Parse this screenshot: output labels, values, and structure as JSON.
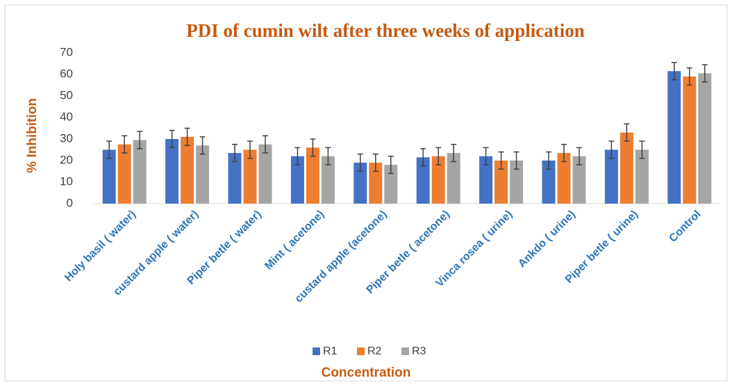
{
  "chart_data": {
    "type": "bar",
    "title": "PDI of cumin wilt after three weeks of application",
    "y_label": "% Inhibition",
    "x_label": "Concentration",
    "categories": [
      "Holy basil ( water)",
      "custard apple ( water)",
      "Piper betle ( water)",
      "Mint ( acetone)",
      "custard apple (acetone)",
      "Piper betle ( acetone)",
      "Vinca rosea ( urine)",
      "Ankdo ( urine)",
      "Piper betle (  urine)",
      "Control"
    ],
    "series": [
      {
        "name": "R1",
        "color": "#4472c4",
        "values": [
          25,
          30,
          23.5,
          22,
          19,
          21.5,
          22,
          20,
          25,
          61.5
        ],
        "errors": [
          4,
          4,
          4,
          4,
          4,
          4,
          4,
          4,
          4,
          4
        ]
      },
      {
        "name": "R2",
        "color": "#ed7d31",
        "values": [
          27.5,
          31,
          25,
          26,
          19,
          22,
          20,
          23.5,
          33,
          59
        ],
        "errors": [
          4,
          4,
          4,
          4,
          4,
          4,
          4,
          4,
          4,
          4
        ]
      },
      {
        "name": "R3",
        "color": "#a5a5a5",
        "values": [
          29.5,
          27,
          27.5,
          22,
          18,
          23.5,
          20,
          22,
          25,
          60.5
        ],
        "errors": [
          4,
          4,
          4,
          4,
          4,
          4,
          4,
          4,
          4,
          4
        ]
      }
    ],
    "ylim": [
      0,
      70
    ],
    "yticks": [
      0,
      10,
      20,
      30,
      40,
      50,
      60,
      70
    ],
    "grid": false,
    "legend": "bottom"
  }
}
